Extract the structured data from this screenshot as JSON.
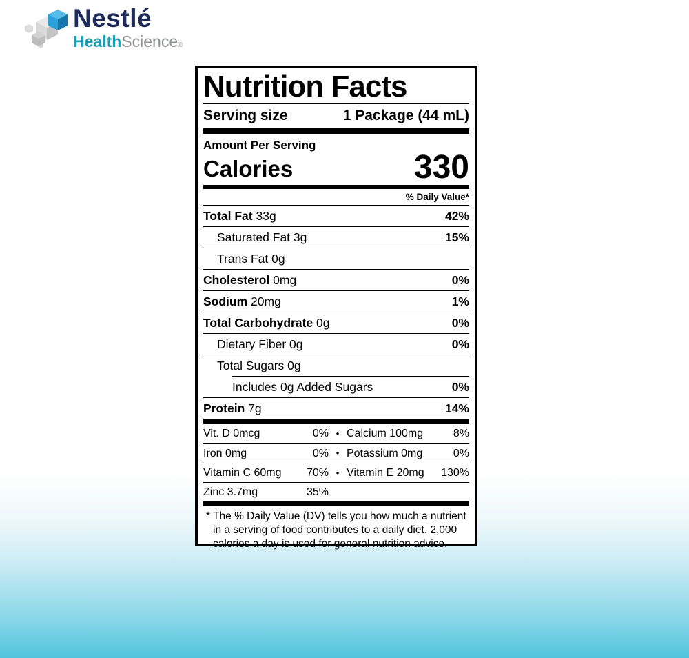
{
  "brand": {
    "name": "Nestlé",
    "sub_health": "Health",
    "sub_science": "Science",
    "registered": "®",
    "colors": {
      "navy": "#1e2a5a",
      "teal": "#1b9fb4",
      "gray": "#8e9093",
      "cube_blue": "#2a9fd8"
    }
  },
  "label": {
    "title": "Nutrition Facts",
    "serving_label": "Serving size",
    "serving_value": "1 Package (44 mL)",
    "amount_per_serving": "Amount Per Serving",
    "calories_label": "Calories",
    "calories_value": "330",
    "daily_value_header": "% Daily Value*",
    "nutrients": [
      {
        "name": "Total Fat",
        "amount": "33g",
        "pct": "42%",
        "bold": true,
        "indent": 0,
        "sep_after": "full"
      },
      {
        "name": "Saturated Fat",
        "amount": "3g",
        "pct": "15%",
        "bold": false,
        "indent": 1,
        "sep_after": "full"
      },
      {
        "name": "Trans Fat",
        "amount": "0g",
        "pct": "",
        "bold": false,
        "indent": 1,
        "sep_after": "full"
      },
      {
        "name": "Cholesterol",
        "amount": "0mg",
        "pct": "0%",
        "bold": true,
        "indent": 0,
        "sep_after": "full"
      },
      {
        "name": "Sodium",
        "amount": "20mg",
        "pct": "1%",
        "bold": true,
        "indent": 0,
        "sep_after": "full"
      },
      {
        "name": "Total Carbohydrate",
        "amount": "0g",
        "pct": "0%",
        "bold": true,
        "indent": 0,
        "sep_after": "full"
      },
      {
        "name": "Dietary Fiber",
        "amount": "0g",
        "pct": "0%",
        "bold": false,
        "indent": 1,
        "sep_after": "full"
      },
      {
        "name": "Total Sugars",
        "amount": "0g",
        "pct": "",
        "bold": false,
        "indent": 1,
        "sep_after": "indent2"
      },
      {
        "name": "Includes 0g Added Sugars",
        "amount": "",
        "pct": "0%",
        "bold": false,
        "indent": 2,
        "sep_after": "full"
      },
      {
        "name": "Protein",
        "amount": "7g",
        "pct": "14%",
        "bold": true,
        "indent": 0,
        "sep_after": "thick"
      }
    ],
    "vitamins": [
      {
        "left_name": "Vit. D 0mcg",
        "left_pct": "0%",
        "bullet": "•",
        "right_name": "Calcium 100mg",
        "right_pct": "8%"
      },
      {
        "left_name": "Iron 0mg",
        "left_pct": "0%",
        "bullet": "•",
        "right_name": "Potassium 0mg",
        "right_pct": "0%"
      },
      {
        "left_name": "Vitamin C 60mg",
        "left_pct": "70%",
        "bullet": "•",
        "right_name": "Vitamin E 20mg",
        "right_pct": "130%"
      },
      {
        "left_name": "Zinc 3.7mg",
        "left_pct": "35%",
        "bullet": "",
        "right_name": "",
        "right_pct": ""
      }
    ],
    "footnote": "* The % Daily Value (DV) tells you how much a nutrient in a serving of food contributes to a daily diet. 2,000 calories a day is used for general nutrition advice."
  }
}
